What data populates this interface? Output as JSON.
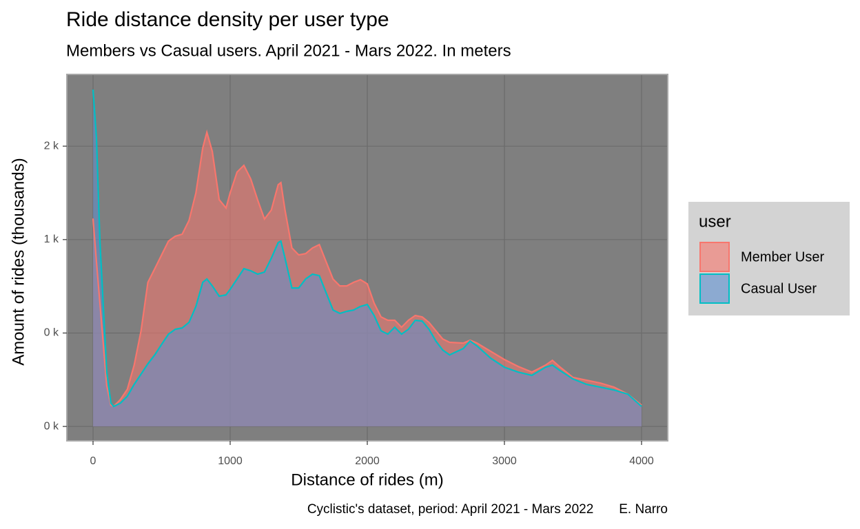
{
  "chart_data": {
    "type": "area",
    "title": "Ride distance density per user type",
    "subtitle": "Members vs Casual users. April 2021 - Mars 2022. In meters",
    "caption": "Cyclistic's dataset, period: April 2021 - Mars 2022       E. Narro",
    "x_label": "Distance of rides (m)",
    "y_label": "Amount of rides (thousands)",
    "legend_title": "user",
    "legend_position": "right",
    "grid": true,
    "xlim": [
      -191,
      4191
    ],
    "ylim": [
      -77,
      1884
    ],
    "xticks": [
      0,
      1000,
      2000,
      3000,
      4000
    ],
    "yticks": [
      {
        "value": 0,
        "label": "0 k"
      },
      {
        "value": 500,
        "label": "0 k"
      },
      {
        "value": 1000,
        "label": "1 k"
      },
      {
        "value": 1500,
        "label": "2 k"
      }
    ],
    "x": [
      0,
      25,
      50,
      100,
      130,
      150,
      200,
      250,
      300,
      350,
      400,
      450,
      500,
      550,
      600,
      650,
      700,
      750,
      800,
      830,
      870,
      920,
      970,
      1000,
      1050,
      1100,
      1150,
      1200,
      1250,
      1300,
      1350,
      1370,
      1400,
      1450,
      1500,
      1550,
      1600,
      1650,
      1700,
      1750,
      1800,
      1850,
      1900,
      1950,
      2000,
      2050,
      2100,
      2150,
      2200,
      2250,
      2300,
      2350,
      2400,
      2450,
      2500,
      2550,
      2600,
      2700,
      2750,
      2800,
      2900,
      3000,
      3100,
      3200,
      3300,
      3350,
      3400,
      3500,
      3600,
      3700,
      3800,
      3900,
      4000
    ],
    "series": [
      {
        "name": "Member User",
        "color": "#f8766d",
        "fill": "#f8766d",
        "values": [
          1113,
          880,
          660,
          218,
          114,
          107,
          144,
          199,
          328,
          512,
          771,
          844,
          918,
          992,
          1018,
          1029,
          1102,
          1250,
          1490,
          1574,
          1471,
          1213,
          1169,
          1250,
          1361,
          1397,
          1324,
          1213,
          1110,
          1158,
          1294,
          1305,
          1158,
          955,
          918,
          925,
          955,
          973,
          881,
          789,
          752,
          752,
          771,
          785,
          763,
          660,
          586,
          568,
          568,
          531,
          568,
          594,
          586,
          557,
          512,
          468,
          450,
          446,
          461,
          446,
          402,
          358,
          321,
          291,
          328,
          354,
          321,
          262,
          247,
          232,
          210,
          173,
          114
        ]
      },
      {
        "name": "Casual User",
        "color": "#00bfc4",
        "fill": "#5e8fd0",
        "values": [
          1803,
          1545,
          992,
          291,
          125,
          107,
          125,
          162,
          225,
          280,
          335,
          383,
          439,
          494,
          520,
          527,
          557,
          642,
          771,
          789,
          752,
          697,
          704,
          734,
          789,
          844,
          833,
          815,
          826,
          900,
          984,
          992,
          900,
          741,
          741,
          789,
          815,
          807,
          715,
          623,
          605,
          616,
          623,
          642,
          653,
          594,
          512,
          494,
          531,
          494,
          520,
          568,
          564,
          520,
          457,
          409,
          383,
          417,
          457,
          431,
          365,
          317,
          291,
          273,
          317,
          328,
          302,
          254,
          225,
          210,
          195,
          173,
          107
        ]
      }
    ]
  }
}
